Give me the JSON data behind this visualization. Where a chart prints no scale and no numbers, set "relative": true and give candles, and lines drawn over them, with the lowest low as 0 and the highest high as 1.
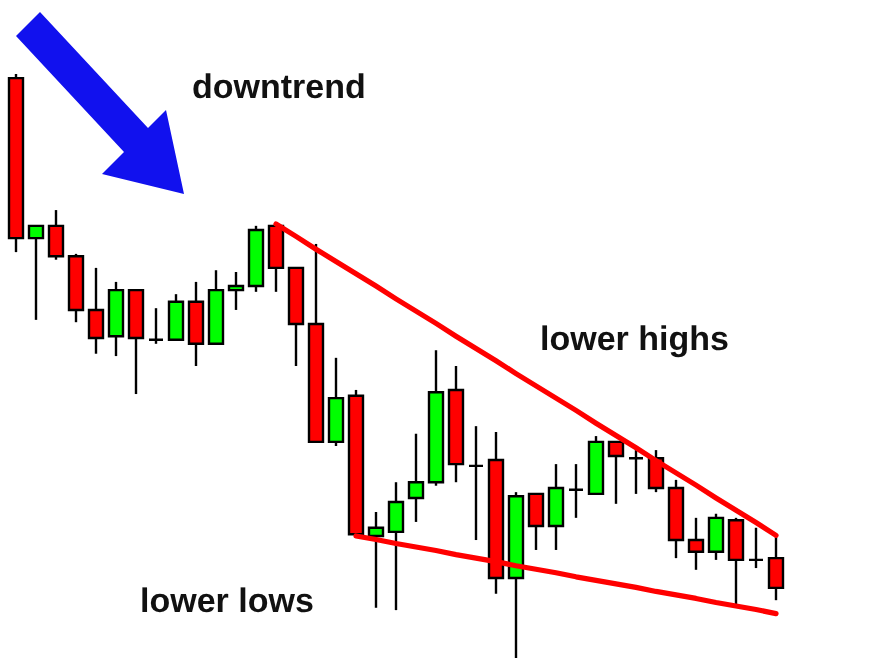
{
  "chart_data": {
    "type": "candlestick",
    "relative": true,
    "tick_labels": false,
    "annotations": [
      "downtrend",
      "lower highs",
      "lower lows"
    ],
    "categories": [
      null,
      null,
      null,
      null,
      null,
      null,
      null,
      null,
      null,
      null,
      null,
      null,
      null,
      null,
      null,
      null,
      null,
      null,
      null,
      null,
      null,
      null,
      null,
      null,
      null,
      null,
      null,
      null,
      null,
      null,
      null,
      null,
      null,
      null,
      null,
      null,
      null,
      null,
      null
    ],
    "ohlc": [
      [
        0.993,
        1,
        0.695,
        0.719
      ],
      [
        0.719,
        0.74,
        0.579,
        0.74
      ],
      [
        0.74,
        0.767,
        0.682,
        0.688
      ],
      [
        0.688,
        0.692,
        0.575,
        0.596
      ],
      [
        0.596,
        0.668,
        0.521,
        0.548
      ],
      [
        0.551,
        0.644,
        0.517,
        0.63
      ],
      [
        0.63,
        0.63,
        0.452,
        0.548
      ],
      [
        0.545,
        0.599,
        0.538,
        0.545
      ],
      [
        0.545,
        0.623,
        0.545,
        0.61
      ],
      [
        0.61,
        0.644,
        0.5,
        0.538
      ],
      [
        0.538,
        0.664,
        0.538,
        0.63
      ],
      [
        0.63,
        0.661,
        0.596,
        0.637
      ],
      [
        0.637,
        0.74,
        0.627,
        0.733
      ],
      [
        0.74,
        0.743,
        0.627,
        0.668
      ],
      [
        0.668,
        0.668,
        0.5,
        0.572
      ],
      [
        0.572,
        0.709,
        0.37,
        0.37
      ],
      [
        0.37,
        0.514,
        0.363,
        0.445
      ],
      [
        0.449,
        0.459,
        0.209,
        0.212
      ],
      [
        0.209,
        0.25,
        0.086,
        0.223
      ],
      [
        0.216,
        0.301,
        0.082,
        0.267
      ],
      [
        0.274,
        0.384,
        0.233,
        0.301
      ],
      [
        0.301,
        0.527,
        0.295,
        0.455
      ],
      [
        0.459,
        0.5,
        0.301,
        0.332
      ],
      [
        0.329,
        0.397,
        0.202,
        0.329
      ],
      [
        0.339,
        0.387,
        0.11,
        0.137
      ],
      [
        0.137,
        0.284,
        0,
        0.277
      ],
      [
        0.281,
        0.281,
        0.185,
        0.226
      ],
      [
        0.226,
        0.332,
        0.185,
        0.291
      ],
      [
        0.288,
        0.332,
        0.24,
        0.288
      ],
      [
        0.281,
        0.38,
        0.281,
        0.37
      ],
      [
        0.37,
        0.37,
        0.264,
        0.346
      ],
      [
        0.342,
        0.356,
        0.281,
        0.342
      ],
      [
        0.342,
        0.356,
        0.284,
        0.291
      ],
      [
        0.291,
        0.305,
        0.171,
        0.202
      ],
      [
        0.202,
        0.24,
        0.151,
        0.182
      ],
      [
        0.182,
        0.247,
        0.168,
        0.24
      ],
      [
        0.236,
        0.24,
        0.089,
        0.168
      ],
      [
        0.168,
        0.223,
        0.154,
        0.168
      ],
      [
        0.171,
        0.212,
        0.099,
        0.12
      ]
    ],
    "colors": [
      "#ff0000",
      "#00ff00",
      "#ff0000",
      "#ff0000",
      "#ff0000",
      "#00ff00",
      "#ff0000",
      "#000000",
      "#00ff00",
      "#ff0000",
      "#00ff00",
      "#00ff00",
      "#00ff00",
      "#ff0000",
      "#ff0000",
      "#ff0000",
      "#00ff00",
      "#ff0000",
      "#00ff00",
      "#00ff00",
      "#00ff00",
      "#00ff00",
      "#ff0000",
      "#000000",
      "#ff0000",
      "#00ff00",
      "#ff0000",
      "#00ff00",
      "#000000",
      "#00ff00",
      "#ff0000",
      "#000000",
      "#ff0000",
      "#ff0000",
      "#ff0000",
      "#00ff00",
      "#ff0000",
      "#000000",
      "#ff0000"
    ],
    "series": [
      {
        "type": "line",
        "color": "#ff0000",
        "values": [
          null,
          null,
          null,
          null,
          null,
          null,
          null,
          null,
          null,
          null,
          null,
          null,
          null,
          0.743,
          0.722,
          0.7,
          0.679,
          0.658,
          0.637,
          0.615,
          0.594,
          0.573,
          0.551,
          0.53,
          0.509,
          0.487,
          0.466,
          0.445,
          0.424,
          0.402,
          0.381,
          0.36,
          0.338,
          0.317,
          0.296,
          0.274,
          0.253,
          0.232,
          0.21
        ]
      },
      {
        "type": "line",
        "color": "#ff0000",
        "values": [
          null,
          null,
          null,
          null,
          null,
          null,
          null,
          null,
          null,
          null,
          null,
          null,
          null,
          null,
          null,
          null,
          null,
          0.209,
          0.203,
          0.196,
          0.19,
          0.184,
          0.177,
          0.171,
          0.165,
          0.158,
          0.152,
          0.146,
          0.139,
          0.133,
          0.127,
          0.121,
          0.114,
          0.108,
          0.102,
          0.095,
          0.089,
          0.083,
          0.076
        ]
      }
    ]
  }
}
